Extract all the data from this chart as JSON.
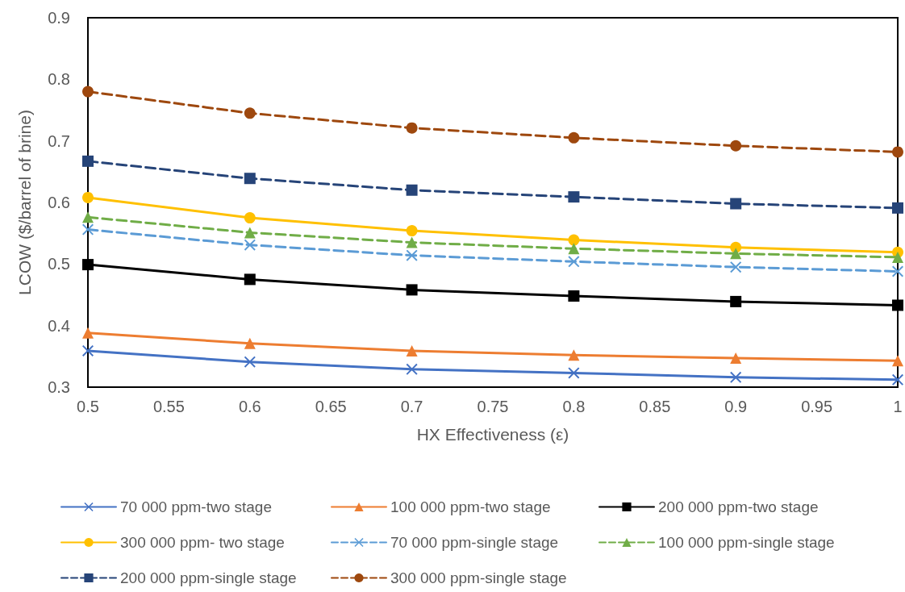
{
  "chart_data": {
    "type": "line",
    "xlabel": "HX Effectiveness (ε)",
    "ylabel": "LCOW ($/barrel of brine)",
    "x": [
      0.5,
      0.6,
      0.7,
      0.8,
      0.9,
      1
    ],
    "xlim": [
      0.5,
      1
    ],
    "xticks": [
      0.5,
      0.55,
      0.6,
      0.65,
      0.7,
      0.75,
      0.8,
      0.85,
      0.9,
      0.95,
      1
    ],
    "ylim": [
      0.3,
      0.9
    ],
    "yticks": [
      0.3,
      0.4,
      0.5,
      0.6,
      0.7,
      0.8,
      0.9
    ],
    "grid": false,
    "legend": "bottom",
    "series": [
      {
        "name": "70 000 ppm-two stage",
        "color": "#4472c4",
        "marker": "cross",
        "line_style": "solid",
        "values": [
          0.359,
          0.341,
          0.329,
          0.323,
          0.316,
          0.312
        ]
      },
      {
        "name": "100 000 ppm-two stage",
        "color": "#ed7d31",
        "marker": "triangle",
        "line_style": "solid",
        "values": [
          0.388,
          0.371,
          0.359,
          0.352,
          0.347,
          0.343
        ]
      },
      {
        "name": "200 000 ppm-two stage",
        "color": "#000000",
        "marker": "square",
        "line_style": "solid",
        "values": [
          0.499,
          0.475,
          0.458,
          0.448,
          0.439,
          0.433
        ]
      },
      {
        "name": "300 000 ppm- two stage",
        "color": "#ffc000",
        "marker": "circle",
        "line_style": "solid",
        "values": [
          0.608,
          0.575,
          0.554,
          0.539,
          0.527,
          0.519
        ]
      },
      {
        "name": "70 000 ppm-single stage",
        "color": "#5b9bd5",
        "marker": "cross",
        "line_style": "dashed",
        "values": [
          0.556,
          0.531,
          0.514,
          0.504,
          0.495,
          0.488
        ]
      },
      {
        "name": "100 000 ppm-single stage",
        "color": "#70ad47",
        "marker": "triangle",
        "line_style": "dashed",
        "values": [
          0.576,
          0.551,
          0.535,
          0.525,
          0.517,
          0.511
        ]
      },
      {
        "name": "200 000 ppm-single stage",
        "color": "#264478",
        "marker": "square",
        "line_style": "dashed",
        "values": [
          0.667,
          0.639,
          0.62,
          0.609,
          0.598,
          0.591
        ]
      },
      {
        "name": "300 000 ppm-single stage",
        "color": "#9e480e",
        "marker": "circle",
        "line_style": "dashed",
        "values": [
          0.78,
          0.745,
          0.721,
          0.705,
          0.692,
          0.682
        ]
      }
    ]
  }
}
